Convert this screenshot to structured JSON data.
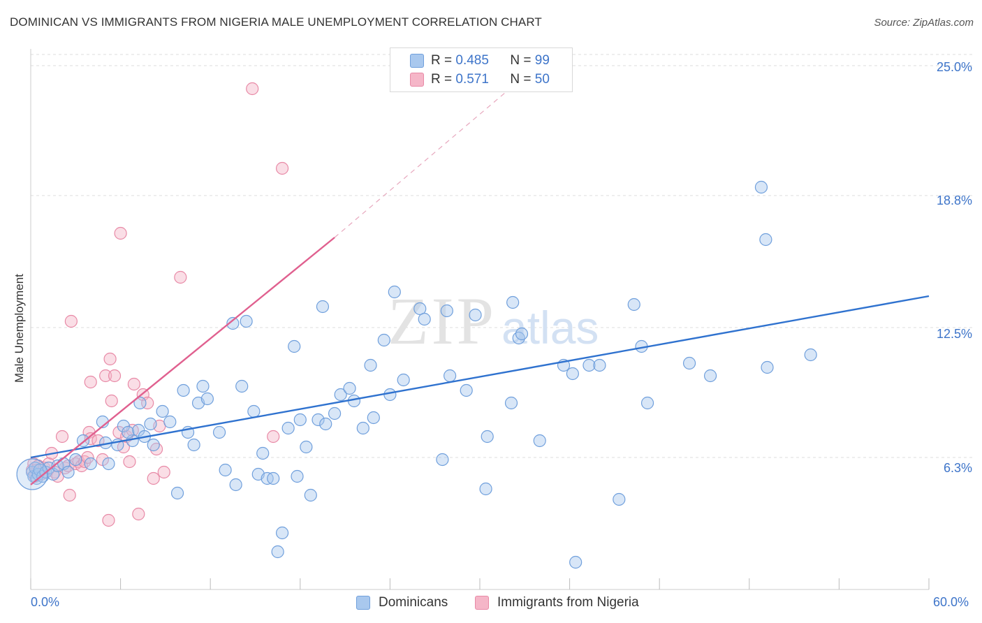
{
  "title": "DOMINICAN VS IMMIGRANTS FROM NIGERIA MALE UNEMPLOYMENT CORRELATION CHART",
  "source": "Source: ZipAtlas.com",
  "watermark": {
    "zip": "ZIP",
    "atlas": "atlas"
  },
  "legend": {
    "r_label": "R =",
    "n_label": "N =",
    "dominicans": {
      "r": "0.485",
      "n": "99"
    },
    "nigeria": {
      "r": "0.571",
      "n": "50"
    }
  },
  "colors": {
    "blue_fill": "#a9c8ee",
    "blue_stroke": "#6f9fdc",
    "blue_line": "#2f72cf",
    "pink_fill": "#f5b6c8",
    "pink_stroke": "#e889a6",
    "pink_line": "#e0608f",
    "axis_text": "#3d74c9",
    "grid": "#dddddd"
  },
  "chart_data": {
    "type": "scatter",
    "title": "DOMINICAN VS IMMIGRANTS FROM NIGERIA MALE UNEMPLOYMENT CORRELATION CHART",
    "xlabel": "",
    "ylabel": "Male Unemployment",
    "xlim": [
      0,
      60
    ],
    "ylim": [
      0,
      25.8
    ],
    "x_tick_labels": [
      "0.0%",
      "60.0%"
    ],
    "y_ticks": [
      6.3,
      12.5,
      18.8,
      25.0
    ],
    "y_tick_labels": [
      "6.3%",
      "12.5%",
      "18.8%",
      "25.0%"
    ],
    "grid": true,
    "legend_position": "bottom",
    "series": [
      {
        "name": "Dominicans",
        "color": "#6f9fdc",
        "trend": {
          "x0": 0,
          "y0": 6.3,
          "x1": 60,
          "y1": 14.0
        },
        "points": [
          [
            0.1,
            5.6
          ],
          [
            0.2,
            5.4
          ],
          [
            0.3,
            5.8
          ],
          [
            0.4,
            5.3
          ],
          [
            0.5,
            5.5
          ],
          [
            0.6,
            5.7
          ],
          [
            0.8,
            5.4
          ],
          [
            1.0,
            5.6
          ],
          [
            1.2,
            5.8
          ],
          [
            1.5,
            5.5
          ],
          [
            1.8,
            5.9
          ],
          [
            2.2,
            6.0
          ],
          [
            2.5,
            5.6
          ],
          [
            3.0,
            6.2
          ],
          [
            3.5,
            7.1
          ],
          [
            4.0,
            6.0
          ],
          [
            5.2,
            6.0
          ],
          [
            5.0,
            7.0
          ],
          [
            4.8,
            8.0
          ],
          [
            5.8,
            6.9
          ],
          [
            6.2,
            7.8
          ],
          [
            6.8,
            7.1
          ],
          [
            6.5,
            7.5
          ],
          [
            7.2,
            7.6
          ],
          [
            7.6,
            7.3
          ],
          [
            7.3,
            8.9
          ],
          [
            8.0,
            7.9
          ],
          [
            8.2,
            6.9
          ],
          [
            8.8,
            8.5
          ],
          [
            9.3,
            8.0
          ],
          [
            9.8,
            4.6
          ],
          [
            10.2,
            9.5
          ],
          [
            10.5,
            7.5
          ],
          [
            10.9,
            6.9
          ],
          [
            11.2,
            8.9
          ],
          [
            11.5,
            9.7
          ],
          [
            11.8,
            9.1
          ],
          [
            12.6,
            7.5
          ],
          [
            13.0,
            5.7
          ],
          [
            13.5,
            12.7
          ],
          [
            13.7,
            5.0
          ],
          [
            14.1,
            9.7
          ],
          [
            14.4,
            12.8
          ],
          [
            14.9,
            8.5
          ],
          [
            15.2,
            5.5
          ],
          [
            15.5,
            6.5
          ],
          [
            15.8,
            5.3
          ],
          [
            16.2,
            5.3
          ],
          [
            16.5,
            1.8
          ],
          [
            16.8,
            2.7
          ],
          [
            17.2,
            7.7
          ],
          [
            17.6,
            11.6
          ],
          [
            17.8,
            5.4
          ],
          [
            18.0,
            8.1
          ],
          [
            18.4,
            6.8
          ],
          [
            18.7,
            4.5
          ],
          [
            19.2,
            8.1
          ],
          [
            19.5,
            13.5
          ],
          [
            19.7,
            7.9
          ],
          [
            20.3,
            8.4
          ],
          [
            20.7,
            9.3
          ],
          [
            21.3,
            9.6
          ],
          [
            21.6,
            9.0
          ],
          [
            22.2,
            7.7
          ],
          [
            22.7,
            10.7
          ],
          [
            22.9,
            8.2
          ],
          [
            23.6,
            11.9
          ],
          [
            24.0,
            9.3
          ],
          [
            24.3,
            14.2
          ],
          [
            24.9,
            10.0
          ],
          [
            26.0,
            13.4
          ],
          [
            26.3,
            12.9
          ],
          [
            27.5,
            6.2
          ],
          [
            27.8,
            13.3
          ],
          [
            28.0,
            10.2
          ],
          [
            29.1,
            9.5
          ],
          [
            29.7,
            13.1
          ],
          [
            30.4,
            4.8
          ],
          [
            30.5,
            7.3
          ],
          [
            32.1,
            8.9
          ],
          [
            32.2,
            13.7
          ],
          [
            32.6,
            12.0
          ],
          [
            32.8,
            12.2
          ],
          [
            34.0,
            7.1
          ],
          [
            35.6,
            10.7
          ],
          [
            36.2,
            10.3
          ],
          [
            36.4,
            1.3
          ],
          [
            37.3,
            10.7
          ],
          [
            38.0,
            10.7
          ],
          [
            39.3,
            4.3
          ],
          [
            40.3,
            13.6
          ],
          [
            40.8,
            11.6
          ],
          [
            41.2,
            8.9
          ],
          [
            44.0,
            10.8
          ],
          [
            45.4,
            10.2
          ],
          [
            48.8,
            19.2
          ],
          [
            49.1,
            16.7
          ],
          [
            49.2,
            10.6
          ],
          [
            52.1,
            11.2
          ]
        ]
      },
      {
        "name": "Immigrants from Nigeria",
        "color": "#e889a6",
        "trend": {
          "x0": 0,
          "y0": 5.0,
          "x1": 20.3,
          "y1": 16.8,
          "x_ext": 32.5,
          "y_ext": 24.2
        },
        "points": [
          [
            0.1,
            5.7
          ],
          [
            0.2,
            6.0
          ],
          [
            0.3,
            5.4
          ],
          [
            0.4,
            5.7
          ],
          [
            0.5,
            5.9
          ],
          [
            0.7,
            5.5
          ],
          [
            0.9,
            5.8
          ],
          [
            1.0,
            5.6
          ],
          [
            1.2,
            6.0
          ],
          [
            1.4,
            6.5
          ],
          [
            1.6,
            5.6
          ],
          [
            1.8,
            5.4
          ],
          [
            2.1,
            7.3
          ],
          [
            2.3,
            5.8
          ],
          [
            2.5,
            5.9
          ],
          [
            2.6,
            4.5
          ],
          [
            2.7,
            12.8
          ],
          [
            3.0,
            6.0
          ],
          [
            3.2,
            6.1
          ],
          [
            3.4,
            5.9
          ],
          [
            3.6,
            6.1
          ],
          [
            3.8,
            6.3
          ],
          [
            3.9,
            7.5
          ],
          [
            4.0,
            7.2
          ],
          [
            4.0,
            9.9
          ],
          [
            4.5,
            7.1
          ],
          [
            4.8,
            6.2
          ],
          [
            5.0,
            10.2
          ],
          [
            5.2,
            3.3
          ],
          [
            5.3,
            11.0
          ],
          [
            5.4,
            9.0
          ],
          [
            5.6,
            10.2
          ],
          [
            5.9,
            7.5
          ],
          [
            6.0,
            17.0
          ],
          [
            6.2,
            6.8
          ],
          [
            6.4,
            7.3
          ],
          [
            6.6,
            6.1
          ],
          [
            6.8,
            7.6
          ],
          [
            6.9,
            9.8
          ],
          [
            7.2,
            3.6
          ],
          [
            7.5,
            9.3
          ],
          [
            7.8,
            8.9
          ],
          [
            8.2,
            5.3
          ],
          [
            8.4,
            6.7
          ],
          [
            8.6,
            7.8
          ],
          [
            8.9,
            5.6
          ],
          [
            10.0,
            14.9
          ],
          [
            16.2,
            7.3
          ],
          [
            16.8,
            20.1
          ],
          [
            14.8,
            23.9
          ]
        ]
      }
    ]
  },
  "bottom_legend": {
    "dominicans": "Dominicans",
    "nigeria": "Immigrants from Nigeria"
  }
}
